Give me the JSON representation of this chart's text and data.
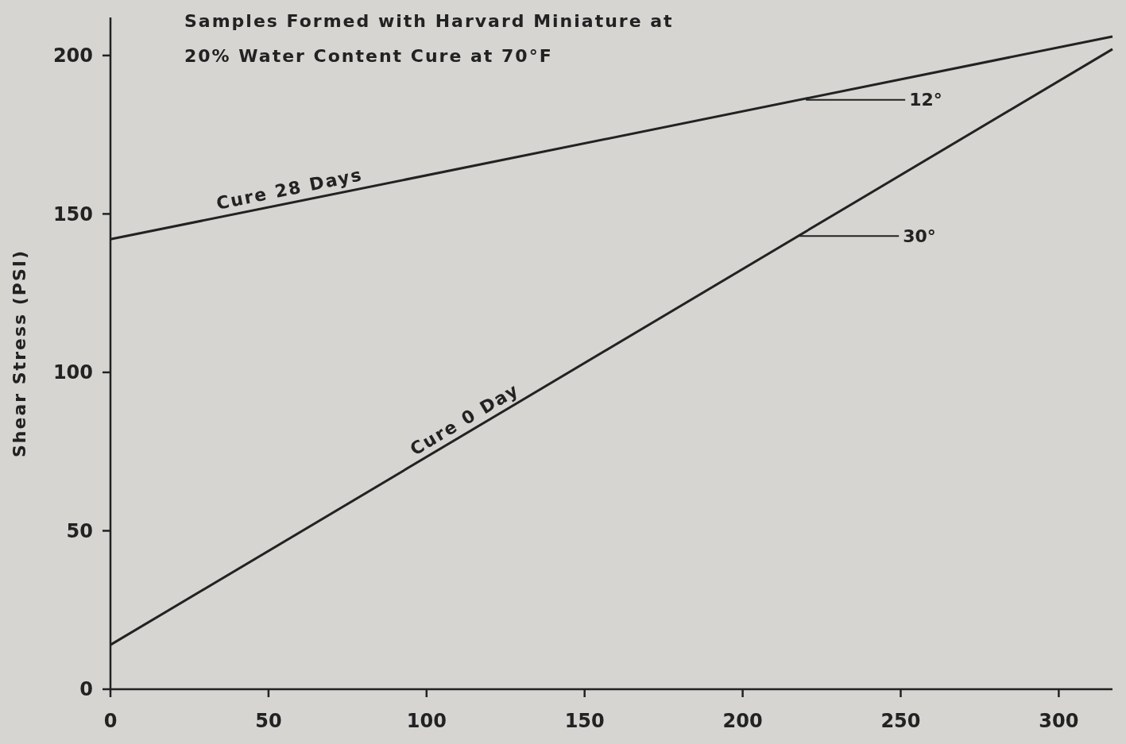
{
  "chart_data": {
    "type": "line",
    "title": "Samples Formed with Harvard Miniature at",
    "subtitle": "20% Water Content Cure at 70°F",
    "ylabel": "Shear Stress (PSI)",
    "x": [
      0,
      317
    ],
    "series": [
      {
        "name": "Cure 28 Days",
        "color": "#222222",
        "values": [
          142,
          206
        ]
      },
      {
        "name": "Cure 0 Day",
        "color": "#222222",
        "values": [
          14,
          202
        ]
      }
    ],
    "xlim": [
      0,
      317
    ],
    "ylim": [
      0,
      212
    ],
    "xticks": [
      0,
      50,
      100,
      150,
      200,
      250,
      300
    ],
    "yticks": [
      0,
      50,
      100,
      150,
      200
    ],
    "grid": false,
    "marker": "none",
    "line_style": "solid",
    "annotations": [
      {
        "text": "12°",
        "x": 220,
        "y": 186
      },
      {
        "text": "30°",
        "x": 218,
        "y": 143
      }
    ]
  }
}
